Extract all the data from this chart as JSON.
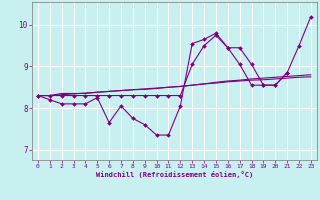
{
  "xlabel": "Windchill (Refroidissement éolien,°C)",
  "bg_color": "#c8f0f0",
  "grid_color": "#ffffff",
  "line_color": "#800080",
  "xlim": [
    -0.5,
    23.5
  ],
  "ylim": [
    6.75,
    10.55
  ],
  "yticks": [
    7,
    8,
    9,
    10
  ],
  "xticks": [
    0,
    1,
    2,
    3,
    4,
    5,
    6,
    7,
    8,
    9,
    10,
    11,
    12,
    13,
    14,
    15,
    16,
    17,
    18,
    19,
    20,
    21,
    22,
    23
  ],
  "series": [
    {
      "y": [
        8.3,
        8.2,
        8.1,
        8.1,
        8.1,
        8.25,
        7.65,
        8.05,
        7.75,
        7.6,
        7.35,
        7.35,
        8.05,
        9.55,
        9.65,
        9.8,
        9.45,
        9.45,
        9.05,
        8.55,
        8.55,
        8.85,
        null,
        null
      ],
      "marker": true
    },
    {
      "y": [
        8.3,
        8.3,
        8.35,
        8.35,
        8.35,
        8.38,
        8.4,
        8.42,
        8.44,
        8.45,
        8.47,
        8.5,
        8.52,
        8.55,
        8.58,
        8.6,
        8.63,
        8.65,
        8.67,
        8.68,
        8.7,
        8.72,
        8.74,
        8.75
      ],
      "marker": false
    },
    {
      "y": [
        8.3,
        8.3,
        8.32,
        8.34,
        8.36,
        8.38,
        8.4,
        8.42,
        8.44,
        8.46,
        8.48,
        8.5,
        8.52,
        8.55,
        8.58,
        8.62,
        8.65,
        8.67,
        8.7,
        8.72,
        8.74,
        8.76,
        8.78,
        8.8
      ],
      "marker": false
    },
    {
      "y": [
        8.3,
        8.3,
        8.3,
        8.3,
        8.3,
        8.3,
        8.3,
        8.3,
        8.3,
        8.3,
        8.3,
        8.3,
        8.3,
        9.05,
        9.5,
        9.75,
        9.45,
        9.05,
        8.55,
        8.55,
        8.55,
        8.85,
        9.5,
        10.2
      ],
      "marker": true
    }
  ]
}
